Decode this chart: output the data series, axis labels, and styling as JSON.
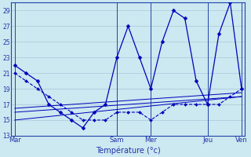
{
  "xlabel": "Température (°c)",
  "background_color": "#cce8f0",
  "line_color": "#0000bb",
  "grid_color": "#a8c8d8",
  "axis_color": "#2244aa",
  "text_color": "#2233aa",
  "ylim": [
    13,
    30
  ],
  "yticks": [
    13,
    15,
    17,
    19,
    21,
    23,
    25,
    27,
    29
  ],
  "day_labels": [
    "Mar",
    "Sam",
    "Mer",
    "Jeu",
    "Ven"
  ],
  "day_x": [
    0,
    9,
    12,
    17,
    20
  ],
  "n_points": 21,
  "series": {
    "main": {
      "x": [
        0,
        1,
        2,
        3,
        4,
        5,
        6,
        7,
        8,
        9,
        10,
        11,
        12,
        13,
        14,
        15,
        16,
        17,
        18,
        19,
        20
      ],
      "y": [
        22,
        21,
        20,
        17,
        16,
        15,
        14,
        16,
        17,
        23,
        27,
        23,
        19,
        25,
        29,
        28,
        20,
        17,
        26,
        30,
        19
      ]
    },
    "dashed": {
      "x": [
        0,
        1,
        2,
        3,
        4,
        5,
        6,
        7,
        8,
        9,
        10,
        11,
        12,
        13,
        14,
        15,
        16,
        17,
        18,
        19,
        20
      ],
      "y": [
        21,
        20,
        19,
        18,
        17,
        16,
        15,
        15,
        15,
        16,
        16,
        16,
        15,
        16,
        17,
        17,
        17,
        17,
        17,
        18,
        19
      ]
    },
    "trend1": {
      "x": [
        0,
        20
      ],
      "y": [
        15,
        18
      ]
    },
    "trend2": {
      "x": [
        0,
        20
      ],
      "y": [
        16,
        18
      ]
    },
    "trend3": {
      "x": [
        0,
        20
      ],
      "y": [
        16.5,
        18.5
      ]
    }
  }
}
